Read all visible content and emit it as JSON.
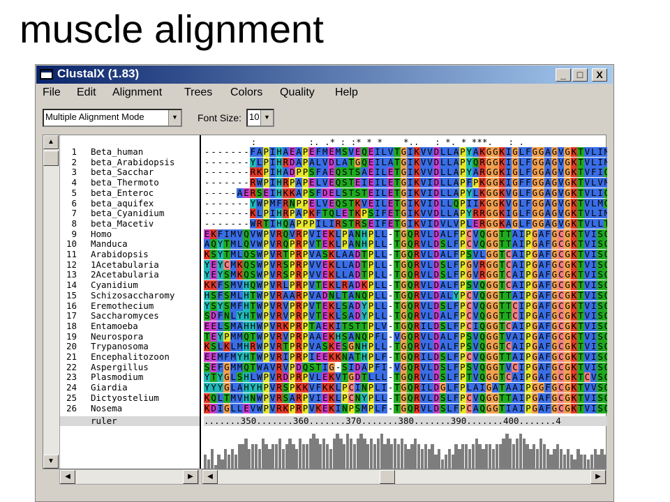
{
  "slide": {
    "title": "muscle alignment"
  },
  "window": {
    "title": "ClustalX (1.83)",
    "buttons": {
      "minimize": "_",
      "maximize": "□",
      "close": "X"
    }
  },
  "menu": [
    "File",
    "Edit",
    "Alignment",
    "Trees",
    "Colors",
    "Quality",
    "Help"
  ],
  "toolbar": {
    "mode_value": "Multiple Alignment Mode",
    "font_label": "Font Size:",
    "font_value": "10"
  },
  "alignment": {
    "consensus": "         :          :. .* : :* * *    *..   : *. * ***.   : .",
    "ruler_label": "ruler",
    "ruler": ".......350.......360.......370.......380.......390.......400.......4",
    "sequences": [
      {
        "num": "1",
        "name": "Beta_human",
        "seq": "-------FAPIHAEAPEFMEMSVEQEILVTGIKVVDLLAPYAKGGKIGLFGGAGVGKTVLIMELINNV"
      },
      {
        "num": "2",
        "name": "beta_Arabidopsis",
        "seq": "-------YLPIHRDAPALVDLATGQEILATGIKVVDLLAPYQRGGKIGLFGGAGVGKTVLIMELINNV"
      },
      {
        "num": "3",
        "name": "beta_Sacchar",
        "seq": "-------RKPIHADPPSFAEQSTSAEILETGIKVVDLLAPYARGGKIGLFGGAGVGKTVFIQELINNI"
      },
      {
        "num": "4",
        "name": "beta_Thermoto",
        "seq": "-------RWPIHRPAPELVEQSTEIEILETGIKVIDLLAPFPKGGKIGFFGGAGVGKTVLVMELINNI"
      },
      {
        "num": "5",
        "name": "beta_Enteroc",
        "seq": "-----AERSEIHKKAPSFDELSTSTEILETGIKVIDLLAPYLKGGKVGLFGGAGVGKTVLIQELIHNI"
      },
      {
        "num": "6",
        "name": "beta_aquifex",
        "seq": "-------YWPMFRNPPELVEQSTKVEILETGIKVIDLLQPIIKGGKVGLFGGAGVGKTVLMQELIHNI"
      },
      {
        "num": "7",
        "name": "beta_Cyanidium",
        "seq": "-------KLPIHRPAPKFTQLETKPSIFETGIKVVDLLAPYRRGGKIGLFGGAGVGKTVLIMELINNV"
      },
      {
        "num": "8",
        "name": "beta_Macetiv",
        "seq": "-------WRTIHQAPPPILIRSTRSEIFETGIKVIDVLVPLERGGKAGLFGGAGVGKTVLLTEMIHNV"
      },
      {
        "num": "9",
        "name": "Homo",
        "seq": "EKFIMVQVWPVRQVRPVIEKLPANHPLL-TGQRVLDALFPCVQGGTTAIPGAFGCGKTVISQSLSKY-"
      },
      {
        "num": "10",
        "name": "Manduca",
        "seq": "AQYTMLQVWPVRQPRPVTEKLPANHPLL-TGQRVLDSLFPCVQGGTTAIPGAFGCGKTVISQALSKY-"
      },
      {
        "num": "11",
        "name": "Arabidopsis",
        "seq": "KSYTMLQSWPVRTPRPVASKLAADTPLL-TGQRVLDALFPSVLGGTCAIPGAFGCGKTVISQALSKY-"
      },
      {
        "num": "12",
        "name": "1Acetabularia",
        "seq": "YEYCMKQSWPVRSPRPVVEKLLADTPLL-TGQRVLDSLFPGVRGGTCAIPGAFGCGKTVISQALSKY-"
      },
      {
        "num": "13",
        "name": "2Acetabularia",
        "seq": "YEYSMKQSWPVRSPRPVVEKLLADTPLL-TGQRVLDSLFPGVRGGTCAIPGAFGCGKTVISQALSKY-"
      },
      {
        "num": "14",
        "name": "Cyanidium",
        "seq": "KKFSMVHQWPVRLPRPVTEKLRADKPLL-TGQRVLDALFPSVQGGTCAIPGAFGCGKTVISQSLSKF-"
      },
      {
        "num": "15",
        "name": "Schizosaccharomy",
        "seq": "HSFSMLHTWPVRAARPVADNLTANQPLL-TGQRVLDALYPCVQGGTTAIPGAFGCGKTVISQSLSKY-"
      },
      {
        "num": "16",
        "name": "Eremothecium",
        "seq": "YSYSMFHTWPVRVPRPVTEKLSADYPLL-TGQRVLDSLFPCVQGGTTCIPGAFGCGKTVISQSLSKY-"
      },
      {
        "num": "17",
        "name": "Saccharomyces",
        "seq": "SDFNLYHTWPVRVPRPVTEKLSADYPLL-TGQRVLDALFPCVQGGTTCIPGAFGCGKTVISQSLSKY-"
      },
      {
        "num": "18",
        "name": "Entamoeba",
        "seq": "EELSMAHHWPVRKPRPTAEKITSTTPLV-TGQRILDSLFPCIQGGTCAIPGAFGCGKTVISQSLSKY-"
      },
      {
        "num": "19",
        "name": "Neurospora",
        "seq": "TEYPMMQTWPVRVPRPAAEKHSANQPFL-VGQRVLDALFPSVQGGTVAIPGAFGCGKTVISQSVSKF-"
      },
      {
        "num": "20",
        "name": "Trypanosoma",
        "seq": "KSLKLMHRWPVRTPRPVASKESGNHPLL-TGQRVLDALFPSVQGGTCAIPGAFGCGKTVISQALSKF-"
      },
      {
        "num": "21",
        "name": "Encephalitozoon",
        "seq": "EEMFMYHTWPVRIPRPIEEKKNATHPLF-TGQRILDSLFPCVQGGTTAIPGAFGCGKTVISQSLSKY-"
      },
      {
        "num": "22",
        "name": "Aspergillus",
        "seq": "SEFGMMQTWAVRVPDQSTIG-SIDAPFI-VGQRVLDSLFPSVQGGTVCIPGAFGCGKTVISQSVSKS-"
      },
      {
        "num": "23",
        "name": "Plasmodium",
        "seq": "YTYGLSHLWPVRDPRPVLEKVTGDTLLL-TGQRVLDSLFPTVQGGTCAIPGAFGCGKTCVSQALSKY-"
      },
      {
        "num": "24",
        "name": "Giardia",
        "seq": "YYYGLAHYHPVRSPKKVFKKLPCINPLI-TGQRILDGLFPLAIGATAAIPGGFGCGKTVVSQSISKY-"
      },
      {
        "num": "25",
        "name": "Dictyostelium",
        "seq": "KQLTMVHNWPVRSARPVIEKLPCNYPLL-TGQRVLDSLFPCVQGGTTAIPGAFGCGKTVISQALSKF-"
      },
      {
        "num": "26",
        "name": "Nosema",
        "seq": "KDIGLLEVWPVRKPRPVKEKINPSMPLF-TGQRVLDSLFPCAQGGTIAIPGAFGCGKTVISQSLSKY-"
      }
    ],
    "quality": [
      3,
      2,
      4,
      1,
      3,
      2,
      4,
      3,
      4,
      3,
      5,
      5,
      6,
      4,
      5,
      5,
      4,
      6,
      5,
      4,
      5,
      5,
      6,
      4,
      5,
      6,
      5,
      4,
      6,
      5,
      5,
      6,
      7,
      6,
      5,
      6,
      5,
      4,
      6,
      7,
      6,
      5,
      7,
      6,
      5,
      6,
      7,
      6,
      5,
      6,
      5,
      6,
      7,
      5,
      6,
      5,
      6,
      5,
      6,
      5,
      4,
      5,
      6,
      5,
      4,
      5,
      4,
      5,
      3,
      4,
      2,
      3,
      4,
      3,
      5,
      4,
      5,
      5,
      4,
      5,
      6,
      5,
      4,
      5,
      5,
      4,
      5,
      5,
      6,
      7,
      6,
      5,
      6,
      7,
      6,
      5,
      4,
      5,
      4,
      6,
      5,
      4,
      3,
      4,
      5,
      4,
      3,
      4,
      3,
      2,
      4,
      3,
      3,
      2,
      3,
      4,
      3,
      4,
      3
    ],
    "colors": {
      "blue": "#3a6ee6",
      "green": "#1faa1f",
      "red": "#e33a2a",
      "magenta": "#cc3ccc",
      "orange": "#f0a050",
      "cyan": "#20b8b8",
      "yellow": "#e6e62a",
      "white": "#ffffff"
    }
  }
}
